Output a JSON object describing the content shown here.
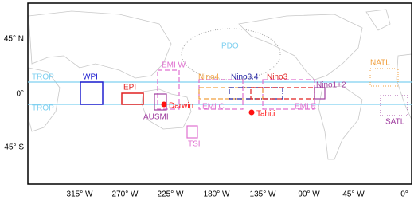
{
  "map": {
    "lon_labels": [
      "315° W",
      "270° W",
      "225° W",
      "180° W",
      "135° W",
      "90° W",
      "45° W",
      "0°"
    ],
    "lat_labels": [
      "45° N",
      "0°",
      "45° S"
    ],
    "regions": [
      {
        "label": "TROP"
      },
      {
        "label": "TROP"
      },
      {
        "label": "WPI"
      },
      {
        "label": "EPI"
      },
      {
        "label": "EMI W"
      },
      {
        "label": "AUSMI"
      },
      {
        "label": "Darwin"
      },
      {
        "label": "TSI"
      },
      {
        "label": "PDO"
      },
      {
        "label": "Nino4"
      },
      {
        "label": "Nino3.4"
      },
      {
        "label": "Nino3"
      },
      {
        "label": "Nino1+2"
      },
      {
        "label": "EMI C"
      },
      {
        "label": "EMI E"
      },
      {
        "label": "Tahiti"
      },
      {
        "label": "NATL"
      },
      {
        "label": "SATL"
      }
    ]
  }
}
